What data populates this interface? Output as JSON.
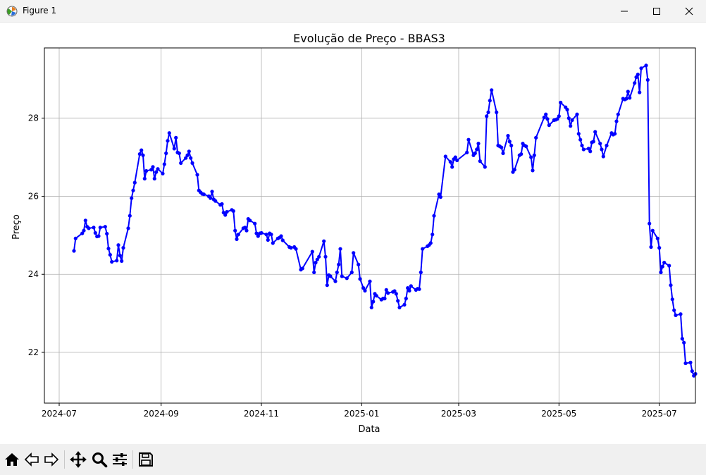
{
  "window": {
    "title": "Figure 1"
  },
  "toolbar": {
    "tools": [
      {
        "name": "home-button",
        "icon": "home-icon"
      },
      {
        "name": "back-button",
        "icon": "back-arrow-icon"
      },
      {
        "name": "forward-button",
        "icon": "forward-arrow-icon"
      },
      {
        "name": "pan-button",
        "icon": "move-icon"
      },
      {
        "name": "zoom-button",
        "icon": "magnifier-icon"
      },
      {
        "name": "configure-subplots-button",
        "icon": "sliders-icon"
      },
      {
        "name": "save-button",
        "icon": "floppy-disk-icon"
      }
    ]
  },
  "colors": {
    "line": "#0000ff",
    "grid": "#b0b0b0",
    "text": "#000000"
  },
  "chart_data": {
    "type": "line",
    "title": "Evolução de Preço - BBAS3",
    "xlabel": "Data",
    "ylabel": "Preço",
    "xlim": [
      "2024-06-22",
      "2025-07-23"
    ],
    "ylim": [
      20.7,
      29.8
    ],
    "xticks": [
      {
        "date": "2024-07-01",
        "label": "2024-07"
      },
      {
        "date": "2024-09-01",
        "label": "2024-09"
      },
      {
        "date": "2024-11-01",
        "label": "2024-11"
      },
      {
        "date": "2025-01-01",
        "label": "2025-01"
      },
      {
        "date": "2025-03-01",
        "label": "2025-03"
      },
      {
        "date": "2025-05-01",
        "label": "2025-05"
      },
      {
        "date": "2025-07-01",
        "label": "2025-07"
      }
    ],
    "yticks": [
      22,
      24,
      26,
      28
    ],
    "grid": true,
    "series": [
      {
        "marker": "circle",
        "points": [
          [
            "2024-07-10",
            24.6
          ],
          [
            "2024-07-11",
            24.92
          ],
          [
            "2024-07-15",
            25.05
          ],
          [
            "2024-07-16",
            25.12
          ],
          [
            "2024-07-17",
            25.38
          ],
          [
            "2024-07-18",
            25.22
          ],
          [
            "2024-07-19",
            25.18
          ],
          [
            "2024-07-22",
            25.2
          ],
          [
            "2024-07-23",
            25.06
          ],
          [
            "2024-07-24",
            24.97
          ],
          [
            "2024-07-25",
            24.98
          ],
          [
            "2024-07-26",
            25.2
          ],
          [
            "2024-07-29",
            25.22
          ],
          [
            "2024-07-30",
            25.04
          ],
          [
            "2024-07-31",
            24.66
          ],
          [
            "2024-08-01",
            24.5
          ],
          [
            "2024-08-02",
            24.32
          ],
          [
            "2024-08-05",
            24.35
          ],
          [
            "2024-08-06",
            24.75
          ],
          [
            "2024-08-07",
            24.48
          ],
          [
            "2024-08-08",
            24.34
          ],
          [
            "2024-08-09",
            24.68
          ],
          [
            "2024-08-12",
            25.18
          ],
          [
            "2024-08-13",
            25.5
          ],
          [
            "2024-08-14",
            25.95
          ],
          [
            "2024-08-15",
            26.15
          ],
          [
            "2024-08-16",
            26.35
          ],
          [
            "2024-08-19",
            27.08
          ],
          [
            "2024-08-20",
            27.18
          ],
          [
            "2024-08-21",
            27.05
          ],
          [
            "2024-08-22",
            26.45
          ],
          [
            "2024-08-23",
            26.65
          ],
          [
            "2024-08-26",
            26.68
          ],
          [
            "2024-08-27",
            26.75
          ],
          [
            "2024-08-28",
            26.45
          ],
          [
            "2024-08-29",
            26.62
          ],
          [
            "2024-08-30",
            26.7
          ],
          [
            "2024-09-02",
            26.58
          ],
          [
            "2024-09-03",
            26.82
          ],
          [
            "2024-09-04",
            27.1
          ],
          [
            "2024-09-05",
            27.42
          ],
          [
            "2024-09-06",
            27.62
          ],
          [
            "2024-09-09",
            27.22
          ],
          [
            "2024-09-10",
            27.5
          ],
          [
            "2024-09-11",
            27.12
          ],
          [
            "2024-09-12",
            27.1
          ],
          [
            "2024-09-13",
            26.85
          ],
          [
            "2024-09-16",
            26.98
          ],
          [
            "2024-09-17",
            27.05
          ],
          [
            "2024-09-18",
            27.15
          ],
          [
            "2024-09-19",
            26.98
          ],
          [
            "2024-09-20",
            26.85
          ],
          [
            "2024-09-23",
            26.55
          ],
          [
            "2024-09-24",
            26.15
          ],
          [
            "2024-09-25",
            26.1
          ],
          [
            "2024-09-26",
            26.06
          ],
          [
            "2024-09-27",
            26.05
          ],
          [
            "2024-09-30",
            26.0
          ],
          [
            "2024-10-01",
            25.95
          ],
          [
            "2024-10-02",
            26.12
          ],
          [
            "2024-10-03",
            25.92
          ],
          [
            "2024-10-04",
            25.88
          ],
          [
            "2024-10-07",
            25.78
          ],
          [
            "2024-10-08",
            25.8
          ],
          [
            "2024-10-09",
            25.58
          ],
          [
            "2024-10-10",
            25.52
          ],
          [
            "2024-10-11",
            25.6
          ],
          [
            "2024-10-14",
            25.65
          ],
          [
            "2024-10-15",
            25.62
          ],
          [
            "2024-10-16",
            25.12
          ],
          [
            "2024-10-17",
            24.9
          ],
          [
            "2024-10-18",
            25.02
          ],
          [
            "2024-10-21",
            25.18
          ],
          [
            "2024-10-22",
            25.2
          ],
          [
            "2024-10-23",
            25.12
          ],
          [
            "2024-10-24",
            25.42
          ],
          [
            "2024-10-25",
            25.38
          ],
          [
            "2024-10-28",
            25.3
          ],
          [
            "2024-10-29",
            25.05
          ],
          [
            "2024-10-30",
            24.98
          ],
          [
            "2024-10-31",
            25.05
          ],
          [
            "2024-11-01",
            25.06
          ],
          [
            "2024-11-04",
            25.02
          ],
          [
            "2024-11-05",
            24.88
          ],
          [
            "2024-11-06",
            25.05
          ],
          [
            "2024-11-07",
            25.02
          ],
          [
            "2024-11-08",
            24.8
          ],
          [
            "2024-11-11",
            24.92
          ],
          [
            "2024-11-12",
            24.94
          ],
          [
            "2024-11-13",
            24.98
          ],
          [
            "2024-11-14",
            24.87
          ],
          [
            "2024-11-18",
            24.7
          ],
          [
            "2024-11-19",
            24.68
          ],
          [
            "2024-11-21",
            24.7
          ],
          [
            "2024-11-22",
            24.65
          ],
          [
            "2024-11-25",
            24.12
          ],
          [
            "2024-11-26",
            24.15
          ],
          [
            "2024-12-02",
            24.58
          ],
          [
            "2024-12-03",
            24.05
          ],
          [
            "2024-12-04",
            24.3
          ],
          [
            "2024-12-05",
            24.38
          ],
          [
            "2024-12-06",
            24.45
          ],
          [
            "2024-12-09",
            24.85
          ],
          [
            "2024-12-10",
            24.45
          ],
          [
            "2024-12-11",
            23.72
          ],
          [
            "2024-12-12",
            23.98
          ],
          [
            "2024-12-13",
            23.95
          ],
          [
            "2024-12-16",
            23.82
          ],
          [
            "2024-12-17",
            24.05
          ],
          [
            "2024-12-18",
            24.25
          ],
          [
            "2024-12-19",
            24.65
          ],
          [
            "2024-12-20",
            23.95
          ],
          [
            "2024-12-23",
            23.9
          ],
          [
            "2024-12-26",
            24.05
          ],
          [
            "2024-12-27",
            24.55
          ],
          [
            "2024-12-30",
            24.25
          ],
          [
            "2024-12-31",
            23.88
          ],
          [
            "2025-01-02",
            23.65
          ],
          [
            "2025-01-03",
            23.58
          ],
          [
            "2025-01-06",
            23.82
          ],
          [
            "2025-01-07",
            23.15
          ],
          [
            "2025-01-08",
            23.3
          ],
          [
            "2025-01-09",
            23.5
          ],
          [
            "2025-01-10",
            23.45
          ],
          [
            "2025-01-13",
            23.35
          ],
          [
            "2025-01-14",
            23.38
          ],
          [
            "2025-01-15",
            23.38
          ],
          [
            "2025-01-16",
            23.6
          ],
          [
            "2025-01-17",
            23.52
          ],
          [
            "2025-01-20",
            23.55
          ],
          [
            "2025-01-21",
            23.57
          ],
          [
            "2025-01-22",
            23.5
          ],
          [
            "2025-01-23",
            23.32
          ],
          [
            "2025-01-24",
            23.15
          ],
          [
            "2025-01-27",
            23.22
          ],
          [
            "2025-01-28",
            23.38
          ],
          [
            "2025-01-29",
            23.65
          ],
          [
            "2025-01-30",
            23.58
          ],
          [
            "2025-01-31",
            23.7
          ],
          [
            "2025-02-03",
            23.6
          ],
          [
            "2025-02-04",
            23.63
          ],
          [
            "2025-02-05",
            23.62
          ],
          [
            "2025-02-06",
            24.05
          ],
          [
            "2025-02-07",
            24.65
          ],
          [
            "2025-02-10",
            24.72
          ],
          [
            "2025-02-11",
            24.75
          ],
          [
            "2025-02-12",
            24.8
          ],
          [
            "2025-02-13",
            25.02
          ],
          [
            "2025-02-14",
            25.5
          ],
          [
            "2025-02-17",
            26.05
          ],
          [
            "2025-02-18",
            25.98
          ],
          [
            "2025-02-21",
            27.02
          ],
          [
            "2025-02-24",
            26.88
          ],
          [
            "2025-02-25",
            26.75
          ],
          [
            "2025-02-26",
            26.95
          ],
          [
            "2025-02-27",
            27.0
          ],
          [
            "2025-02-28",
            26.92
          ],
          [
            "2025-03-06",
            27.12
          ],
          [
            "2025-03-07",
            27.45
          ],
          [
            "2025-03-10",
            27.05
          ],
          [
            "2025-03-11",
            27.1
          ],
          [
            "2025-03-12",
            27.2
          ],
          [
            "2025-03-13",
            27.35
          ],
          [
            "2025-03-14",
            26.9
          ],
          [
            "2025-03-17",
            26.75
          ],
          [
            "2025-03-18",
            28.05
          ],
          [
            "2025-03-19",
            28.15
          ],
          [
            "2025-03-20",
            28.45
          ],
          [
            "2025-03-21",
            28.72
          ],
          [
            "2025-03-24",
            28.15
          ],
          [
            "2025-03-25",
            27.3
          ],
          [
            "2025-03-26",
            27.28
          ],
          [
            "2025-03-27",
            27.25
          ],
          [
            "2025-03-28",
            27.1
          ],
          [
            "2025-03-31",
            27.55
          ],
          [
            "2025-04-01",
            27.4
          ],
          [
            "2025-04-02",
            27.3
          ],
          [
            "2025-04-03",
            26.62
          ],
          [
            "2025-04-04",
            26.68
          ],
          [
            "2025-04-07",
            27.05
          ],
          [
            "2025-04-08",
            27.08
          ],
          [
            "2025-04-09",
            27.35
          ],
          [
            "2025-04-10",
            27.3
          ],
          [
            "2025-04-11",
            27.28
          ],
          [
            "2025-04-14",
            27.0
          ],
          [
            "2025-04-15",
            26.66
          ],
          [
            "2025-04-16",
            27.05
          ],
          [
            "2025-04-17",
            27.5
          ],
          [
            "2025-04-22",
            28.02
          ],
          [
            "2025-04-23",
            28.1
          ],
          [
            "2025-04-24",
            27.98
          ],
          [
            "2025-04-25",
            27.82
          ],
          [
            "2025-04-28",
            27.95
          ],
          [
            "2025-04-29",
            27.96
          ],
          [
            "2025-04-30",
            27.98
          ],
          [
            "2025-05-01",
            28.05
          ],
          [
            "2025-05-02",
            28.4
          ],
          [
            "2025-05-05",
            28.28
          ],
          [
            "2025-05-06",
            28.22
          ],
          [
            "2025-05-07",
            28.0
          ],
          [
            "2025-05-08",
            27.8
          ],
          [
            "2025-05-09",
            27.95
          ],
          [
            "2025-05-12",
            28.1
          ],
          [
            "2025-05-13",
            27.6
          ],
          [
            "2025-05-14",
            27.45
          ],
          [
            "2025-05-15",
            27.3
          ],
          [
            "2025-05-16",
            27.2
          ],
          [
            "2025-05-19",
            27.22
          ],
          [
            "2025-05-20",
            27.15
          ],
          [
            "2025-05-21",
            27.38
          ],
          [
            "2025-05-22",
            27.4
          ],
          [
            "2025-05-23",
            27.65
          ],
          [
            "2025-05-26",
            27.35
          ],
          [
            "2025-05-27",
            27.2
          ],
          [
            "2025-05-28",
            27.02
          ],
          [
            "2025-05-30",
            27.3
          ],
          [
            "2025-06-02",
            27.62
          ],
          [
            "2025-06-03",
            27.58
          ],
          [
            "2025-06-04",
            27.6
          ],
          [
            "2025-06-05",
            27.92
          ],
          [
            "2025-06-06",
            28.1
          ],
          [
            "2025-06-09",
            28.5
          ],
          [
            "2025-06-10",
            28.48
          ],
          [
            "2025-06-11",
            28.5
          ],
          [
            "2025-06-12",
            28.68
          ],
          [
            "2025-06-13",
            28.52
          ],
          [
            "2025-06-16",
            28.9
          ],
          [
            "2025-06-17",
            29.05
          ],
          [
            "2025-06-18",
            29.12
          ],
          [
            "2025-06-19",
            28.66
          ],
          [
            "2025-06-20",
            29.28
          ],
          [
            "2025-06-23",
            29.35
          ],
          [
            "2025-06-24",
            28.98
          ],
          [
            "2025-06-25",
            25.3
          ],
          [
            "2025-06-26",
            24.7
          ],
          [
            "2025-06-27",
            25.12
          ],
          [
            "2025-06-30",
            24.92
          ],
          [
            "2025-07-01",
            24.68
          ],
          [
            "2025-07-02",
            24.05
          ],
          [
            "2025-07-03",
            24.2
          ],
          [
            "2025-07-04",
            24.3
          ],
          [
            "2025-07-07",
            24.22
          ],
          [
            "2025-07-08",
            23.72
          ],
          [
            "2025-07-09",
            23.36
          ],
          [
            "2025-07-10",
            23.08
          ],
          [
            "2025-07-11",
            22.95
          ],
          [
            "2025-07-14",
            22.98
          ],
          [
            "2025-07-15",
            22.35
          ],
          [
            "2025-07-16",
            22.25
          ],
          [
            "2025-07-17",
            21.72
          ],
          [
            "2025-07-20",
            21.74
          ],
          [
            "2025-07-21",
            21.52
          ],
          [
            "2025-07-22",
            21.4
          ],
          [
            "2025-07-23",
            21.45
          ]
        ]
      }
    ]
  }
}
